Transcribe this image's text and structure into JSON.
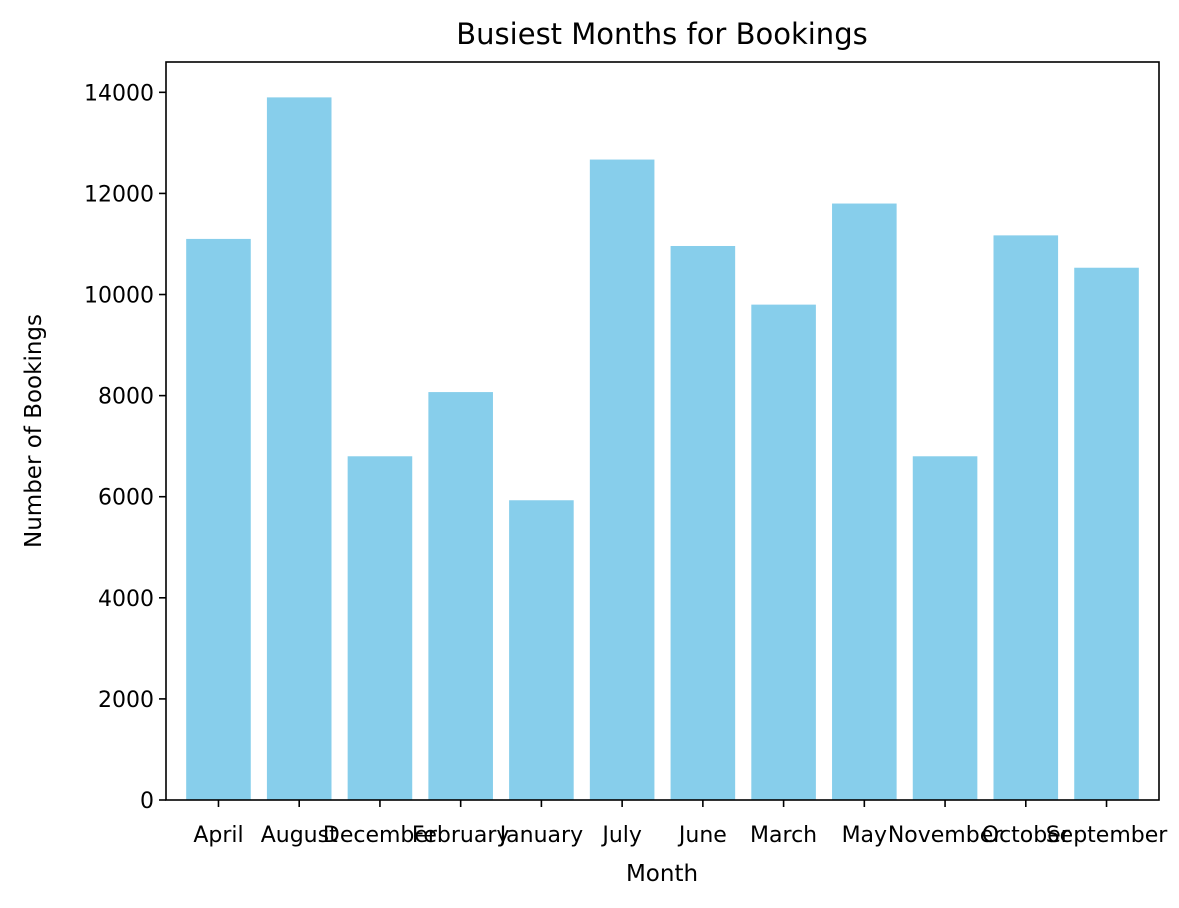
{
  "chart_data": {
    "type": "bar",
    "title": "Busiest Months for Bookings",
    "xlabel": "Month",
    "ylabel": "Number of Bookings",
    "categories": [
      "April",
      "August",
      "December",
      "February",
      "January",
      "July",
      "June",
      "March",
      "May",
      "November",
      "October",
      "September"
    ],
    "values": [
      11100,
      13900,
      6800,
      8070,
      5930,
      12670,
      10960,
      9800,
      11800,
      6800,
      11170,
      10530
    ],
    "ylim": [
      0,
      14600
    ],
    "yticks": [
      0,
      2000,
      4000,
      6000,
      8000,
      10000,
      12000,
      14000
    ],
    "grid": false,
    "bar_color": "#87CEEB"
  }
}
